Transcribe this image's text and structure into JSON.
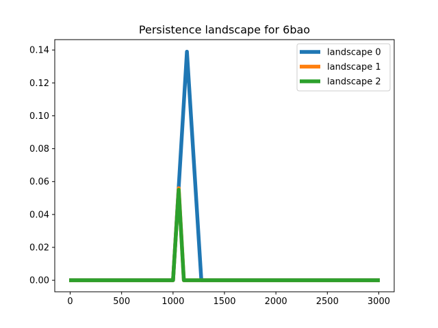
{
  "chart_data": {
    "type": "line",
    "title": "Persistence landscape for 6bao",
    "xlabel": "",
    "ylabel": "",
    "xlim": [
      -150,
      3150
    ],
    "ylim": [
      -0.007,
      0.1463
    ],
    "x_ticks": [
      0,
      500,
      1000,
      1500,
      2000,
      2500,
      3000
    ],
    "y_ticks": [
      0.0,
      0.02,
      0.04,
      0.06,
      0.08,
      0.1,
      0.12,
      0.14
    ],
    "x_tick_labels": [
      "0",
      "500",
      "1000",
      "1500",
      "2000",
      "2500",
      "3000"
    ],
    "y_tick_labels": [
      "0.00",
      "0.02",
      "0.04",
      "0.06",
      "0.08",
      "0.10",
      "0.12",
      "0.14"
    ],
    "grid": false,
    "legend_position": "top-right",
    "series": [
      {
        "name": "landscape 0",
        "color": "#1f77b4",
        "x": [
          -10,
          1000,
          1135,
          1275,
          1285,
          3010
        ],
        "y": [
          0,
          0,
          0.139,
          0,
          0,
          0
        ]
      },
      {
        "name": "landscape 1",
        "color": "#ff7f0e",
        "x": [
          -10,
          1000,
          1055,
          1105,
          3010
        ],
        "y": [
          0,
          0,
          0.056,
          0,
          0
        ]
      },
      {
        "name": "landscape 2",
        "color": "#2ca02c",
        "x": [
          -10,
          1000,
          1055,
          1105,
          3010
        ],
        "y": [
          0,
          0,
          0.055,
          0,
          0
        ]
      }
    ]
  }
}
